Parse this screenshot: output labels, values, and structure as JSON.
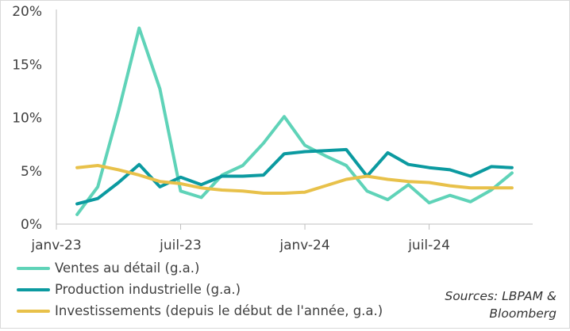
{
  "chart_data": {
    "type": "line",
    "ylim": [
      0,
      20
    ],
    "y_ticks": [
      {
        "value": 0,
        "label": "0%"
      },
      {
        "value": 5,
        "label": "5%"
      },
      {
        "value": 10,
        "label": "10%"
      },
      {
        "value": 15,
        "label": "15%"
      },
      {
        "value": 20,
        "label": "20%"
      }
    ],
    "x": [
      "2023-01",
      "2023-02",
      "2023-03",
      "2023-04",
      "2023-05",
      "2023-06",
      "2023-07",
      "2023-08",
      "2023-09",
      "2023-10",
      "2023-11",
      "2023-12",
      "2024-01",
      "2024-02",
      "2024-03",
      "2024-04",
      "2024-05",
      "2024-06",
      "2024-07",
      "2024-08",
      "2024-09",
      "2024-10",
      "2024-11"
    ],
    "x_ticks": [
      {
        "x": "2023-01",
        "label": "janv-23"
      },
      {
        "x": "2023-07",
        "label": "juil-23"
      },
      {
        "x": "2024-01",
        "label": "janv-24"
      },
      {
        "x": "2024-07",
        "label": "juil-24"
      }
    ],
    "series": [
      {
        "name": "Ventes au détail (g.a.)",
        "color": "#5fd3b8",
        "values": [
          null,
          0.9,
          3.5,
          10.6,
          18.4,
          12.7,
          3.1,
          2.5,
          4.6,
          5.5,
          7.6,
          10.1,
          7.4,
          6.4,
          5.5,
          3.1,
          2.3,
          3.7,
          2.0,
          2.7,
          2.1,
          3.2,
          4.8
        ]
      },
      {
        "name": "Production industrielle (g.a.)",
        "color": "#0b9aa0",
        "values": [
          null,
          1.9,
          2.4,
          3.9,
          5.6,
          3.5,
          4.4,
          3.7,
          4.5,
          4.5,
          4.6,
          6.6,
          6.8,
          6.9,
          7.0,
          4.5,
          6.7,
          5.6,
          5.3,
          5.1,
          4.5,
          5.4,
          5.3
        ]
      },
      {
        "name": "Investissements (depuis le début de l'année, g.a.)",
        "color": "#e8c14a",
        "values": [
          null,
          5.3,
          5.5,
          5.1,
          4.6,
          4.0,
          3.8,
          3.4,
          3.2,
          3.1,
          2.9,
          2.9,
          3.0,
          3.6,
          4.2,
          4.5,
          4.2,
          4.0,
          3.9,
          3.6,
          3.4,
          3.4,
          3.4
        ]
      }
    ],
    "legend_position": "bottom-left",
    "source_note": [
      "Sources: LBPAM &",
      "Bloomberg"
    ],
    "grid": false
  }
}
